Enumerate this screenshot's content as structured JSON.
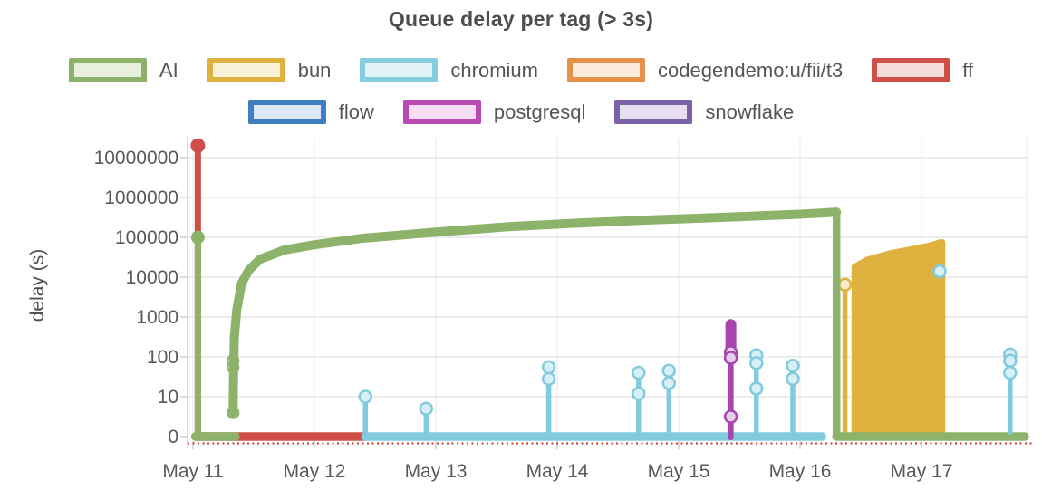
{
  "title": "Queue delay per tag (> 3s)",
  "legend": {
    "rows": [
      [
        {
          "name": "ai",
          "label": "AI",
          "color": "#8cb369",
          "fill": "#e8efdc"
        },
        {
          "name": "bun",
          "label": "bun",
          "color": "#dfb23f",
          "fill": "#faf2d8"
        },
        {
          "name": "chromium",
          "label": "chromium",
          "color": "#85cde0",
          "fill": "#e3f4f9"
        },
        {
          "name": "codegendemo",
          "label": "codegendemo:u/fii/t3",
          "color": "#e6914a",
          "fill": "#fceadb"
        },
        {
          "name": "ff",
          "label": "ff",
          "color": "#cf4f48",
          "fill": "#f6dcda"
        }
      ],
      [
        {
          "name": "flow",
          "label": "flow",
          "color": "#3f7fc1",
          "fill": "#dce8f5"
        },
        {
          "name": "postgresql",
          "label": "postgresql",
          "color": "#b94ab1",
          "fill": "#f6ddf3"
        },
        {
          "name": "snowflake",
          "label": "snowflake",
          "color": "#7b62a8",
          "fill": "#e5e0f1"
        }
      ]
    ]
  },
  "chart_data": {
    "type": "line",
    "title": "Queue delay per tag (> 3s)",
    "xlabel": "",
    "ylabel": "delay (s)",
    "y_scale": "symlog",
    "grid": true,
    "legend_position": "top",
    "y_ticks": [
      0,
      10,
      100,
      1000,
      10000,
      100000,
      1000000,
      10000000
    ],
    "x_ticks": [
      "May 11",
      "May 12",
      "May 13",
      "May 14",
      "May 15",
      "May 16",
      "May 17"
    ],
    "x_range_days": [
      11.0,
      17.9
    ],
    "series": [
      {
        "name": "ff",
        "color": "#cf4f48",
        "zero_dotted": [
          11.0,
          17.87
        ],
        "zero_solid": [
          [
            11.02,
            12.42
          ]
        ],
        "lollipops": [
          {
            "x": 11.04,
            "markers": [
              20000000
            ],
            "stem_w": 7,
            "marker_r": 8,
            "solid": true
          }
        ]
      },
      {
        "name": "chromium",
        "color": "#82cbde",
        "ring_fill": "#d9eff6",
        "zero_solid": [
          [
            12.42,
            16.18
          ]
        ],
        "lollipops": [
          {
            "x": 12.42,
            "markers": [
              10
            ]
          },
          {
            "x": 12.92,
            "markers": [
              7
            ]
          },
          {
            "x": 13.93,
            "markers": [
              55,
              28
            ]
          },
          {
            "x": 14.67,
            "markers": [
              40,
              12
            ]
          },
          {
            "x": 14.92,
            "markers": [
              45,
              22
            ]
          },
          {
            "x": 15.64,
            "markers": [
              110,
              70,
              16
            ]
          },
          {
            "x": 15.94,
            "markers": [
              60,
              28
            ]
          },
          {
            "x": 17.15,
            "markers": [
              14000
            ],
            "stem": false,
            "defer": true
          },
          {
            "x": 17.73,
            "markers": [
              115,
              80,
              40
            ],
            "defer": true
          }
        ]
      },
      {
        "name": "postgresql",
        "color": "#a845ae",
        "ring_fill": "#e7cdea",
        "lollipops": [
          {
            "x": 15.43,
            "blob": [
              650,
              130
            ],
            "markers": [
              130,
              95,
              5
            ],
            "stem_w": 6
          }
        ]
      },
      {
        "name": "bun",
        "color": "#dfb23f",
        "ring_fill": "#f8ecca",
        "lollipops": [
          {
            "x": 16.37,
            "markers": [
              6500
            ]
          }
        ],
        "area": {
          "points": [
            [
              16.45,
              18000
            ],
            [
              16.55,
              27000
            ],
            [
              16.75,
              40000
            ],
            [
              16.95,
              52000
            ],
            [
              17.08,
              63000
            ],
            [
              17.16,
              75000
            ]
          ],
          "close_at": 17.17
        }
      },
      {
        "name": "AI",
        "color": "#8cb369",
        "zero_solid": [
          [
            11.02,
            11.35
          ],
          [
            16.3,
            17.85
          ]
        ],
        "verticals": [
          {
            "x": 11.04,
            "top": 100000
          }
        ],
        "curve": [
          [
            11.33,
            6
          ],
          [
            11.335,
            60
          ],
          [
            11.34,
            300
          ],
          [
            11.36,
            1500
          ],
          [
            11.4,
            7000
          ],
          [
            11.46,
            15000
          ],
          [
            11.55,
            28000
          ],
          [
            11.75,
            48000
          ],
          [
            12.0,
            65000
          ],
          [
            12.4,
            95000
          ],
          [
            13.0,
            135000
          ],
          [
            13.6,
            185000
          ],
          [
            14.2,
            230000
          ],
          [
            14.8,
            275000
          ],
          [
            15.4,
            320000
          ],
          [
            16.0,
            380000
          ],
          [
            16.2,
            410000
          ],
          [
            16.3,
            430000
          ]
        ],
        "curve_markers": [
          {
            "x": 11.33,
            "values": [
              6,
              55,
              80
            ]
          }
        ],
        "drop": {
          "x": 16.3,
          "from": 430000
        }
      }
    ]
  },
  "axis": {
    "ylabel": "delay (s)"
  }
}
